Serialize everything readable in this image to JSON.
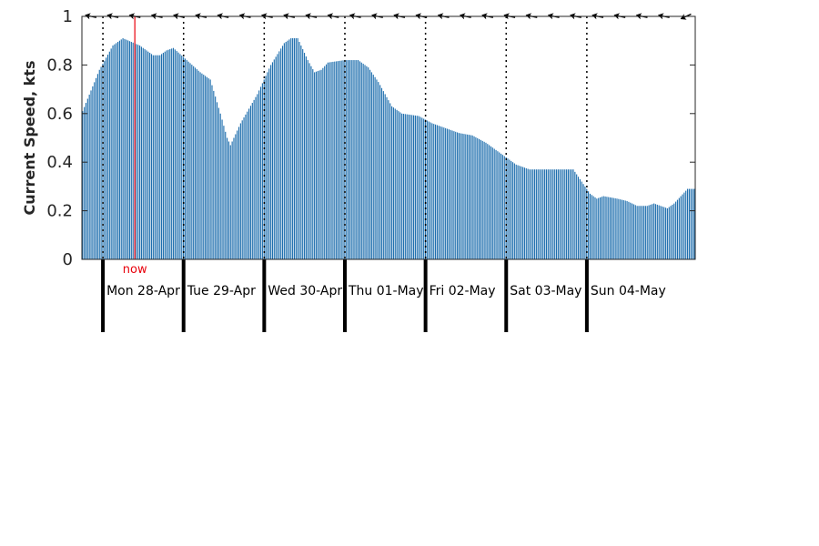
{
  "chart_data": {
    "type": "bar",
    "ylabel": "Current Speed, kts",
    "ylim": [
      0,
      1
    ],
    "yticks": [
      "0",
      "0.2",
      "0.4",
      "0.6",
      "0.8",
      "1"
    ],
    "bar_color": "#1f6fae",
    "now_color": "#e8000b",
    "now_label": "now",
    "now_hours_from_start": 15.5,
    "hours_per_bar": 0.5,
    "start_hours_before_first_day": 6,
    "days": [
      "Mon 28-Apr",
      "Tue 29-Apr",
      "Wed 30-Apr",
      "Thu 01-May",
      "Fri 02-May",
      "Sat 03-May",
      "Sun 04-May"
    ],
    "anchors": [
      [
        0,
        0.61
      ],
      [
        5,
        0.78
      ],
      [
        9,
        0.88
      ],
      [
        12,
        0.91
      ],
      [
        17,
        0.88
      ],
      [
        21,
        0.84
      ],
      [
        23,
        0.84
      ],
      [
        25,
        0.86
      ],
      [
        27,
        0.87
      ],
      [
        31,
        0.82
      ],
      [
        35,
        0.77
      ],
      [
        38,
        0.74
      ],
      [
        41,
        0.6
      ],
      [
        43,
        0.5
      ],
      [
        44,
        0.47
      ],
      [
        47,
        0.56
      ],
      [
        52,
        0.68
      ],
      [
        56,
        0.8
      ],
      [
        60,
        0.89
      ],
      [
        62,
        0.91
      ],
      [
        64,
        0.91
      ],
      [
        67,
        0.82
      ],
      [
        69,
        0.77
      ],
      [
        71,
        0.78
      ],
      [
        73,
        0.81
      ],
      [
        78,
        0.82
      ],
      [
        82,
        0.82
      ],
      [
        85,
        0.79
      ],
      [
        88,
        0.73
      ],
      [
        92,
        0.63
      ],
      [
        95,
        0.6
      ],
      [
        100,
        0.59
      ],
      [
        104,
        0.56
      ],
      [
        108,
        0.54
      ],
      [
        112,
        0.52
      ],
      [
        116,
        0.51
      ],
      [
        120,
        0.48
      ],
      [
        125,
        0.43
      ],
      [
        129,
        0.39
      ],
      [
        133,
        0.37
      ],
      [
        138,
        0.37
      ],
      [
        141,
        0.37
      ],
      [
        144,
        0.37
      ],
      [
        146,
        0.37
      ],
      [
        148,
        0.33
      ],
      [
        151,
        0.27
      ],
      [
        153,
        0.25
      ],
      [
        155,
        0.26
      ],
      [
        159,
        0.25
      ],
      [
        162,
        0.24
      ],
      [
        165,
        0.22
      ],
      [
        168,
        0.22
      ],
      [
        170,
        0.23
      ],
      [
        172,
        0.22
      ],
      [
        174,
        0.21
      ],
      [
        176,
        0.23
      ],
      [
        178,
        0.26
      ],
      [
        180,
        0.29
      ],
      [
        182,
        0.29
      ]
    ]
  }
}
